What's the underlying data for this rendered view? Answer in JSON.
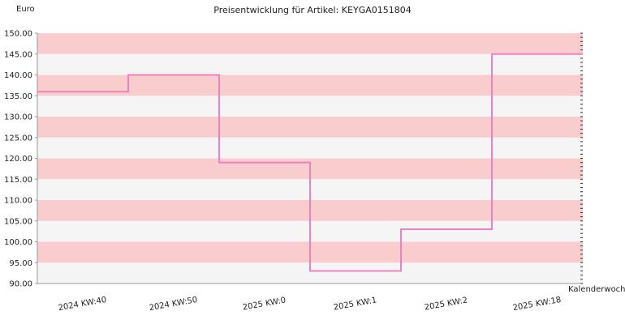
{
  "chart_data": {
    "type": "line",
    "step": true,
    "title": "Preisentwicklung für Artikel: KEYGA0151804",
    "ylabel": "Euro",
    "xlabel": "Kalenderwoche",
    "ylim": [
      90,
      150
    ],
    "y_ticks": [
      "90.00",
      "95.00",
      "100.00",
      "105.00",
      "110.00",
      "115.00",
      "120.00",
      "125.00",
      "130.00",
      "135.00",
      "140.00",
      "145.00",
      "150.00"
    ],
    "categories": [
      "2024 KW:40",
      "2024 KW:50",
      "2025 KW:0",
      "2025 KW:1",
      "2025 KW:2",
      "2025 KW:18"
    ],
    "series": [
      {
        "values": [
          136,
          140,
          119,
          93,
          103,
          145
        ]
      }
    ],
    "colors": {
      "line": "#ee82c0",
      "band_pink": "#f9cdcd",
      "band_light": "#f5f5f5"
    }
  }
}
